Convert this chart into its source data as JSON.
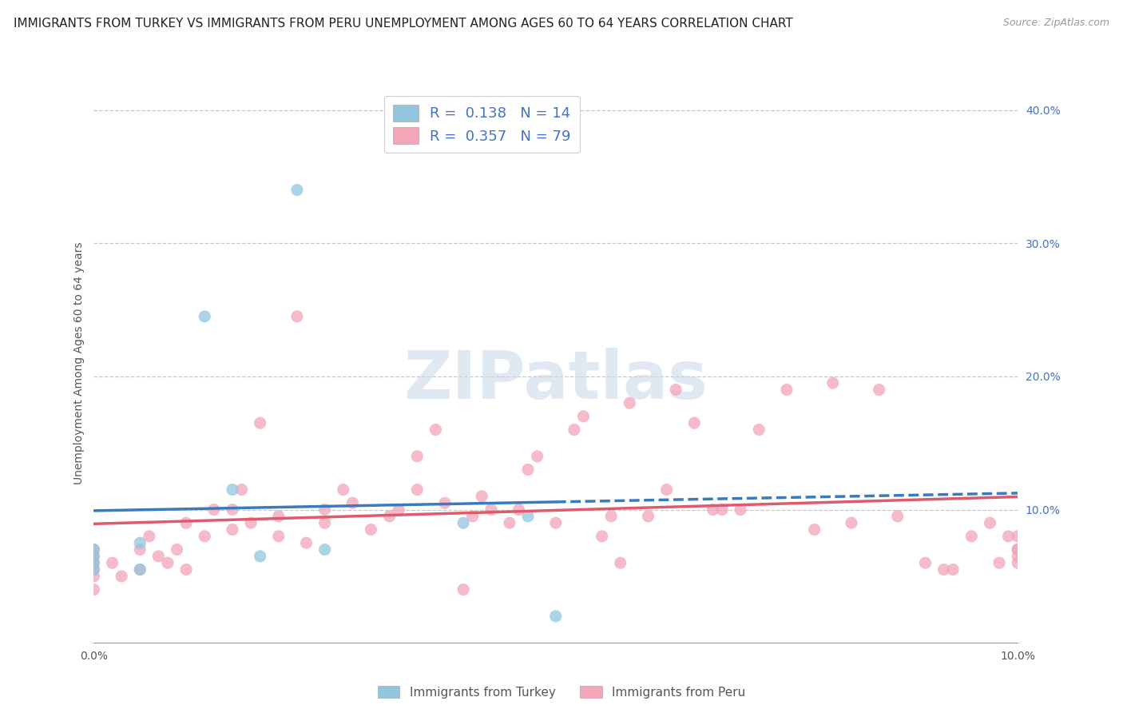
{
  "title": "IMMIGRANTS FROM TURKEY VS IMMIGRANTS FROM PERU UNEMPLOYMENT AMONG AGES 60 TO 64 YEARS CORRELATION CHART",
  "source": "Source: ZipAtlas.com",
  "ylabel": "Unemployment Among Ages 60 to 64 years",
  "xlim": [
    0.0,
    0.1
  ],
  "ylim": [
    0.0,
    0.42
  ],
  "ytick_vals": [
    0.1,
    0.2,
    0.3,
    0.4
  ],
  "ytick_labels": [
    "10.0%",
    "20.0%",
    "30.0%",
    "40.0%"
  ],
  "xtick_vals": [
    0.0,
    0.1
  ],
  "xtick_labels": [
    "0.0%",
    "10.0%"
  ],
  "turkey_color": "#92c5de",
  "peru_color": "#f4a5b8",
  "turkey_line_color": "#3a7abf",
  "peru_line_color": "#e05a6e",
  "turkey_R": 0.138,
  "turkey_N": 14,
  "peru_R": 0.357,
  "peru_N": 79,
  "legend_label_turkey": "Immigrants from Turkey",
  "legend_label_peru": "Immigrants from Peru",
  "turkey_x": [
    0.0,
    0.0,
    0.0,
    0.0,
    0.005,
    0.005,
    0.012,
    0.015,
    0.018,
    0.022,
    0.025,
    0.04,
    0.047,
    0.05
  ],
  "turkey_y": [
    0.055,
    0.06,
    0.065,
    0.07,
    0.055,
    0.075,
    0.245,
    0.115,
    0.065,
    0.34,
    0.07,
    0.09,
    0.095,
    0.02
  ],
  "peru_x": [
    0.0,
    0.0,
    0.0,
    0.0,
    0.0,
    0.0,
    0.002,
    0.003,
    0.005,
    0.005,
    0.006,
    0.007,
    0.008,
    0.009,
    0.01,
    0.01,
    0.012,
    0.013,
    0.015,
    0.015,
    0.016,
    0.017,
    0.018,
    0.02,
    0.02,
    0.022,
    0.023,
    0.025,
    0.025,
    0.027,
    0.028,
    0.03,
    0.032,
    0.033,
    0.035,
    0.035,
    0.037,
    0.038,
    0.04,
    0.041,
    0.042,
    0.043,
    0.045,
    0.046,
    0.047,
    0.048,
    0.05,
    0.052,
    0.053,
    0.055,
    0.056,
    0.057,
    0.058,
    0.06,
    0.062,
    0.063,
    0.065,
    0.067,
    0.068,
    0.07,
    0.072,
    0.075,
    0.078,
    0.08,
    0.082,
    0.085,
    0.087,
    0.09,
    0.092,
    0.093,
    0.095,
    0.097,
    0.098,
    0.099,
    0.1,
    0.1,
    0.1,
    0.1,
    0.1
  ],
  "peru_y": [
    0.04,
    0.05,
    0.055,
    0.06,
    0.065,
    0.07,
    0.06,
    0.05,
    0.055,
    0.07,
    0.08,
    0.065,
    0.06,
    0.07,
    0.055,
    0.09,
    0.08,
    0.1,
    0.085,
    0.1,
    0.115,
    0.09,
    0.165,
    0.095,
    0.08,
    0.245,
    0.075,
    0.09,
    0.1,
    0.115,
    0.105,
    0.085,
    0.095,
    0.1,
    0.115,
    0.14,
    0.16,
    0.105,
    0.04,
    0.095,
    0.11,
    0.1,
    0.09,
    0.1,
    0.13,
    0.14,
    0.09,
    0.16,
    0.17,
    0.08,
    0.095,
    0.06,
    0.18,
    0.095,
    0.115,
    0.19,
    0.165,
    0.1,
    0.1,
    0.1,
    0.16,
    0.19,
    0.085,
    0.195,
    0.09,
    0.19,
    0.095,
    0.06,
    0.055,
    0.055,
    0.08,
    0.09,
    0.06,
    0.08,
    0.06,
    0.065,
    0.07,
    0.07,
    0.08
  ],
  "background_color": "#ffffff",
  "grid_color": "#c8c8c8",
  "watermark_text": "ZIPatlas",
  "title_fontsize": 11,
  "axis_label_fontsize": 10,
  "tick_fontsize": 10,
  "label_color": "#555555",
  "tick_color": "#4472c4",
  "r_color": "#4472c4",
  "n_color": "#2c3e7a"
}
